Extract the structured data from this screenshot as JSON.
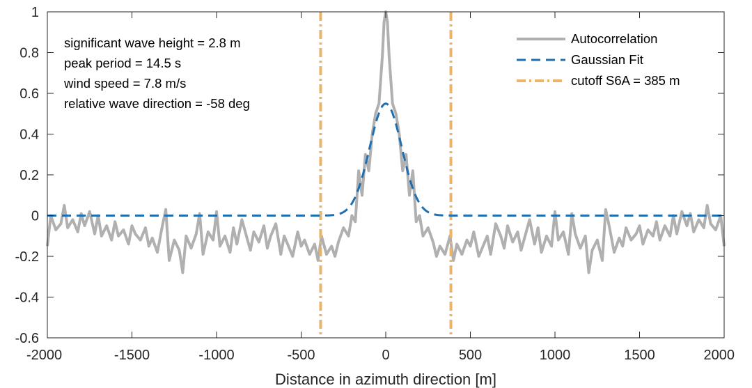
{
  "chart_data": {
    "type": "line",
    "title": "",
    "xlabel": "Distance in azimuth direction [m]",
    "ylabel": "",
    "xlim": [
      -2000,
      2000
    ],
    "ylim": [
      -0.6,
      1
    ],
    "xticks": [
      -2000,
      -1500,
      -1000,
      -500,
      0,
      500,
      1000,
      1500,
      2000
    ],
    "yticks": [
      -0.6,
      -0.4,
      -0.2,
      0,
      0.2,
      0.4,
      0.6,
      0.8,
      1
    ],
    "xtick_labels": [
      "-2000",
      "-1500",
      "-1000",
      "-500",
      "0",
      "500",
      "1000",
      "1500",
      "2000"
    ],
    "ytick_labels": [
      "-0.6",
      "-0.4",
      "-0.2",
      "0",
      "0.2",
      "0.4",
      "0.6",
      "0.8",
      "1"
    ],
    "grid": false,
    "legend_position": "top-right",
    "annotations": [
      "significant wave height = 2.8 m",
      "peak period = 14.5 s",
      "wind speed = 7.8 m/s",
      "relative wave direction = -58 deg"
    ],
    "series": [
      {
        "name": "Autocorrelation",
        "color": "#b0b0b0",
        "style": "solid",
        "x": [
          -2000,
          -1980,
          -1950,
          -1920,
          -1900,
          -1880,
          -1850,
          -1820,
          -1800,
          -1780,
          -1750,
          -1720,
          -1700,
          -1680,
          -1650,
          -1620,
          -1600,
          -1580,
          -1550,
          -1520,
          -1500,
          -1480,
          -1450,
          -1420,
          -1400,
          -1380,
          -1350,
          -1320,
          -1300,
          -1280,
          -1250,
          -1220,
          -1200,
          -1180,
          -1150,
          -1120,
          -1100,
          -1080,
          -1050,
          -1020,
          -1000,
          -980,
          -950,
          -920,
          -900,
          -880,
          -850,
          -820,
          -800,
          -780,
          -750,
          -720,
          -700,
          -680,
          -650,
          -620,
          -600,
          -580,
          -550,
          -520,
          -500,
          -480,
          -450,
          -420,
          -400,
          -380,
          -350,
          -320,
          -300,
          -280,
          -250,
          -220,
          -200,
          -180,
          -160,
          -140,
          -120,
          -100,
          -80,
          -60,
          -40,
          -20,
          -10,
          0,
          10,
          20,
          40,
          60,
          80,
          100,
          120,
          140,
          160,
          180,
          200,
          220,
          250,
          280,
          300,
          320,
          350,
          380,
          400,
          420,
          450,
          480,
          500,
          520,
          550,
          580,
          600,
          620,
          650,
          680,
          700,
          720,
          750,
          780,
          800,
          820,
          850,
          880,
          900,
          920,
          950,
          980,
          1000,
          1020,
          1050,
          1080,
          1100,
          1120,
          1150,
          1180,
          1200,
          1220,
          1250,
          1280,
          1300,
          1320,
          1350,
          1380,
          1400,
          1420,
          1450,
          1480,
          1500,
          1520,
          1550,
          1580,
          1600,
          1620,
          1650,
          1680,
          1700,
          1720,
          1750,
          1780,
          1800,
          1820,
          1850,
          1880,
          1900,
          1920,
          1950,
          1980,
          2000
        ],
        "y": [
          -0.15,
          0.0,
          -0.07,
          -0.04,
          0.05,
          -0.06,
          -0.02,
          -0.08,
          0.01,
          -0.05,
          0.02,
          -0.09,
          0.0,
          -0.1,
          -0.05,
          -0.12,
          -0.03,
          -0.1,
          -0.07,
          -0.14,
          -0.05,
          -0.09,
          -0.12,
          -0.06,
          -0.15,
          -0.11,
          -0.18,
          -0.05,
          0.03,
          -0.22,
          -0.12,
          -0.17,
          -0.28,
          -0.1,
          -0.16,
          -0.09,
          0.01,
          -0.19,
          -0.08,
          -0.12,
          0.02,
          -0.15,
          -0.1,
          -0.18,
          -0.06,
          -0.14,
          -0.02,
          -0.11,
          -0.17,
          -0.08,
          -0.13,
          -0.05,
          -0.16,
          -0.1,
          -0.04,
          -0.19,
          -0.1,
          -0.14,
          -0.2,
          -0.08,
          -0.15,
          -0.12,
          -0.19,
          -0.14,
          -0.22,
          -0.1,
          -0.19,
          -0.15,
          -0.2,
          -0.13,
          -0.06,
          -0.1,
          0.0,
          -0.03,
          0.22,
          0.1,
          0.3,
          0.22,
          0.4,
          0.5,
          0.55,
          0.78,
          0.95,
          1.0,
          0.95,
          0.78,
          0.55,
          0.5,
          0.4,
          0.22,
          0.3,
          0.1,
          0.22,
          -0.03,
          0.0,
          -0.1,
          -0.06,
          -0.13,
          -0.2,
          -0.15,
          -0.19,
          -0.1,
          -0.22,
          -0.14,
          -0.19,
          -0.12,
          -0.15,
          -0.08,
          -0.2,
          -0.14,
          -0.1,
          -0.19,
          -0.04,
          -0.1,
          -0.16,
          -0.05,
          -0.13,
          -0.08,
          -0.17,
          -0.11,
          -0.02,
          -0.14,
          -0.06,
          -0.18,
          -0.1,
          -0.15,
          0.02,
          -0.12,
          -0.08,
          -0.19,
          0.01,
          -0.09,
          -0.16,
          -0.1,
          -0.28,
          -0.17,
          -0.12,
          -0.22,
          0.03,
          -0.05,
          -0.18,
          -0.11,
          -0.15,
          -0.06,
          -0.12,
          -0.09,
          -0.05,
          -0.14,
          -0.07,
          -0.1,
          -0.03,
          -0.12,
          -0.05,
          -0.1,
          0.0,
          -0.09,
          0.02,
          -0.05,
          0.01,
          -0.08,
          -0.02,
          -0.06,
          0.05,
          -0.04,
          -0.07,
          0.0,
          -0.15
        ]
      },
      {
        "name": "Gaussian Fit",
        "color": "#1f6fb0",
        "style": "dashed",
        "amplitude": 0.55,
        "center": 0,
        "sigma": 95
      },
      {
        "name": "cutoff S6A = 385 m",
        "color": "#eab56a",
        "style": "dashdot",
        "x_positions": [
          -385,
          385
        ]
      }
    ],
    "legend": [
      "Autocorrelation",
      "Gaussian Fit",
      "cutoff S6A = 385 m"
    ]
  }
}
